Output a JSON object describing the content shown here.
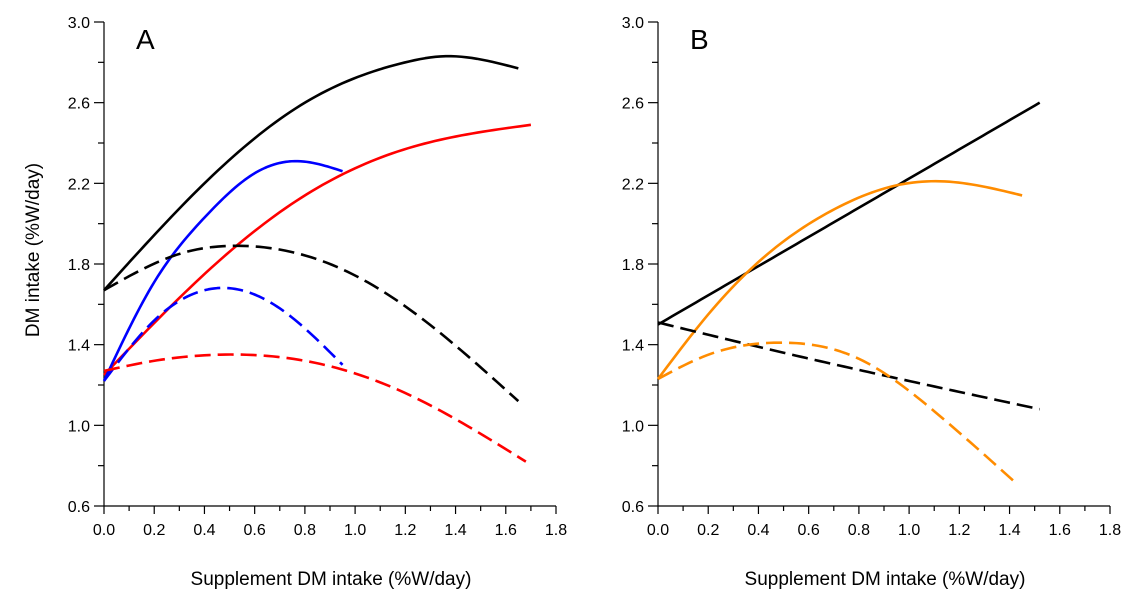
{
  "figure": {
    "ylabel": "DM intake (%W/day)",
    "xlabel": "Supplement DM intake (%W/day)"
  },
  "chart_data": [
    {
      "type": "line",
      "panel_label": "A",
      "xlabel": "Supplement DM intake (%W/day)",
      "ylabel": "DM intake (%W/day)",
      "xlim": [
        0,
        1.8
      ],
      "ylim": [
        0.6,
        3.0
      ],
      "x_ticks": [
        "0.0",
        "0.2",
        "0.4",
        "0.6",
        "0.8",
        "1.0",
        "1.2",
        "1.4",
        "1.6",
        "1.8"
      ],
      "y_ticks": [
        "0.6",
        "1.0",
        "1.4",
        "1.8",
        "2.2",
        "2.6",
        "3.0"
      ],
      "grid": false,
      "series": [
        {
          "color": "#000000",
          "dash": "solid",
          "x": [
            0,
            0.4,
            0.8,
            1.2,
            1.35,
            1.65
          ],
          "y": [
            1.67,
            2.2,
            2.6,
            2.8,
            2.83,
            2.77
          ]
        },
        {
          "color": "#ff0000",
          "dash": "solid",
          "x": [
            0,
            0.4,
            0.8,
            1.2,
            1.7
          ],
          "y": [
            1.25,
            1.75,
            2.14,
            2.37,
            2.49
          ]
        },
        {
          "color": "#0000ff",
          "dash": "solid",
          "x": [
            0,
            0.2,
            0.4,
            0.6,
            0.77,
            0.95
          ],
          "y": [
            1.22,
            1.71,
            2.03,
            2.25,
            2.31,
            2.26
          ]
        },
        {
          "color": "#000000",
          "dash": "dashed",
          "x": [
            0,
            0.3,
            0.55,
            0.9,
            1.2,
            1.65
          ],
          "y": [
            1.67,
            1.85,
            1.89,
            1.8,
            1.59,
            1.12
          ]
        },
        {
          "color": "#0000ff",
          "dash": "dashed",
          "x": [
            0,
            0.2,
            0.4,
            0.5,
            0.7,
            0.95
          ],
          "y": [
            1.22,
            1.52,
            1.67,
            1.68,
            1.58,
            1.3
          ]
        },
        {
          "color": "#ff0000",
          "dash": "dashed",
          "x": [
            0,
            0.2,
            0.45,
            0.8,
            1.2,
            1.68
          ],
          "y": [
            1.27,
            1.32,
            1.35,
            1.32,
            1.16,
            0.82
          ]
        }
      ]
    },
    {
      "type": "line",
      "panel_label": "B",
      "xlabel": "Supplement DM intake (%W/day)",
      "ylabel": "",
      "xlim": [
        0,
        1.8
      ],
      "ylim": [
        0.6,
        3.0
      ],
      "x_ticks": [
        "0.0",
        "0.2",
        "0.4",
        "0.6",
        "0.8",
        "1.0",
        "1.2",
        "1.4",
        "1.6",
        "1.8"
      ],
      "y_ticks": [
        "0.6",
        "1.0",
        "1.4",
        "1.8",
        "2.2",
        "2.6",
        "3.0"
      ],
      "grid": false,
      "series": [
        {
          "color": "#000000",
          "dash": "solid",
          "x": [
            0,
            1.52
          ],
          "y": [
            1.5,
            2.6
          ]
        },
        {
          "color": "#ff8c00",
          "dash": "solid",
          "x": [
            0,
            0.2,
            0.4,
            0.7,
            0.95,
            1.13,
            1.45
          ],
          "y": [
            1.23,
            1.55,
            1.81,
            2.07,
            2.19,
            2.21,
            2.14
          ]
        },
        {
          "color": "#000000",
          "dash": "dashed",
          "x": [
            0,
            0.5,
            1.0,
            1.52
          ],
          "y": [
            1.51,
            1.36,
            1.22,
            1.08
          ]
        },
        {
          "color": "#ff8c00",
          "dash": "dashed",
          "x": [
            0,
            0.2,
            0.48,
            0.8,
            1.1,
            1.42
          ],
          "y": [
            1.23,
            1.35,
            1.41,
            1.33,
            1.07,
            0.72
          ]
        }
      ]
    }
  ]
}
